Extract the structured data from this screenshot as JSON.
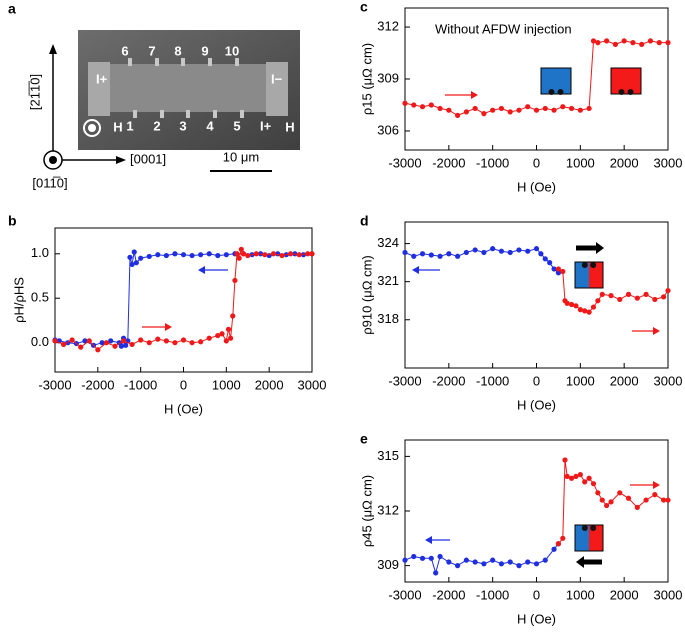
{
  "panel_a": {
    "label": "a",
    "top_electrodes": [
      "6",
      "7",
      "8",
      "9",
      "10"
    ],
    "bottom_electrodes": [
      "1",
      "2",
      "3",
      "4",
      "5"
    ],
    "h_labels": [
      "H",
      "H"
    ],
    "current_labels": [
      "I+",
      "I−",
      "I+"
    ],
    "axis_vertical": "[21̅1̅0]",
    "axis_horizontal": "[0001]",
    "axis_out": "[011̅0]",
    "scale_bar": "10 μm"
  },
  "chart_data": [
    {
      "type": "line",
      "label": "b",
      "xlabel": "H (Oe)",
      "ylabel": "ρH/ρHS",
      "xlim": [
        -3000,
        3000
      ],
      "ylim": [
        -0.33,
        1.29
      ],
      "xticks": [
        -3000,
        -2000,
        -1000,
        0,
        1000,
        2000,
        3000
      ],
      "yticks": [
        {
          "value": 0,
          "label": "0.0"
        },
        {
          "value": 0.5,
          "label": "0.5"
        },
        {
          "value": 1,
          "label": "1.0"
        }
      ],
      "series": [
        {
          "color": "#1f2ee0",
          "x": [
            3000,
            2800,
            2600,
            2400,
            2200,
            2000,
            1800,
            1600,
            1400,
            1200,
            1000,
            800,
            600,
            400,
            200,
            0,
            -200,
            -400,
            -600,
            -800,
            -1000,
            -1100,
            -1150,
            -1200,
            -1250,
            -1300,
            -1350,
            -1400,
            -1450,
            -1500,
            -1700,
            -1900,
            -2100,
            -2300,
            -2500,
            -2700,
            -2900,
            -3000
          ],
          "values": [
            1.0,
            0.99,
            1.0,
            0.99,
            1.0,
            0.98,
            1.0,
            0.99,
            1.0,
            1.0,
            0.99,
            0.98,
            1.0,
            0.99,
            0.98,
            0.99,
            1.0,
            0.98,
            0.99,
            0.97,
            0.95,
            0.9,
            1.02,
            0.88,
            0.96,
            0.02,
            -0.03,
            0.05,
            -0.04,
            0.0,
            0.02,
            0.0,
            -0.03,
            0.02,
            -0.01,
            0.0,
            0.02,
            0.03
          ]
        },
        {
          "color": "#f01818",
          "x": [
            -3000,
            -2800,
            -2600,
            -2400,
            -2200,
            -2000,
            -1800,
            -1600,
            -1400,
            -1200,
            -1000,
            -800,
            -600,
            -400,
            -200,
            0,
            200,
            400,
            600,
            800,
            900,
            1000,
            1050,
            1100,
            1150,
            1200,
            1250,
            1300,
            1350,
            1400,
            1500,
            1700,
            1900,
            2100,
            2300,
            2500,
            2700,
            2900,
            3000
          ],
          "values": [
            0.02,
            -0.02,
            0.03,
            -0.05,
            0.02,
            -0.08,
            0.0,
            -0.04,
            0.02,
            -0.02,
            0.03,
            0.0,
            0.04,
            0.02,
            0.0,
            0.03,
            0.0,
            0.01,
            0.05,
            0.08,
            0.1,
            0.02,
            0.15,
            0.05,
            0.3,
            0.7,
            1.0,
            0.95,
            1.05,
            1.0,
            0.98,
            1.0,
            0.99,
            1.0,
            0.98,
            1.0,
            0.99,
            1.0,
            1.0
          ]
        }
      ]
    },
    {
      "type": "line",
      "label": "c",
      "xlabel": "H (Oe)",
      "ylabel": "ρ15 (μΩ cm)",
      "annotation": "Without AFDW injection",
      "xlim": [
        -3000,
        3000
      ],
      "ylim": [
        304.9,
        313.1
      ],
      "xticks": [
        -3000,
        -2000,
        -1000,
        0,
        1000,
        2000,
        3000
      ],
      "yticks": [
        306,
        309,
        312
      ],
      "series": [
        {
          "color": "#f01818",
          "x": [
            -3000,
            -2800,
            -2600,
            -2400,
            -2200,
            -2000,
            -1800,
            -1600,
            -1400,
            -1200,
            -1000,
            -800,
            -600,
            -400,
            -200,
            0,
            200,
            400,
            600,
            800,
            1000,
            1200,
            1300,
            1400,
            1600,
            1800,
            2000,
            2200,
            2400,
            2600,
            2800,
            3000
          ],
          "values": [
            307.6,
            307.5,
            307.4,
            307.5,
            307.3,
            307.2,
            306.9,
            307.1,
            307.3,
            307.0,
            307.2,
            307.3,
            307.1,
            307.2,
            307.4,
            307.2,
            307.3,
            307.2,
            307.4,
            307.3,
            307.2,
            307.3,
            311.2,
            311.1,
            311.2,
            311.0,
            311.2,
            311.1,
            311.0,
            311.2,
            311.1,
            311.1
          ]
        }
      ]
    },
    {
      "type": "line",
      "label": "d",
      "xlabel": "H (Oe)",
      "ylabel": "ρ910 (μΩ cm)",
      "xlim": [
        -3000,
        3000
      ],
      "ylim": [
        314.2,
        325.7
      ],
      "xticks": [
        -3000,
        -2000,
        -1000,
        0,
        1000,
        2000,
        3000
      ],
      "yticks": [
        318,
        321,
        324
      ],
      "series": [
        {
          "color": "#1f2ee0",
          "x": [
            -3000,
            -2800,
            -2600,
            -2400,
            -2200,
            -2000,
            -1800,
            -1600,
            -1400,
            -1200,
            -1000,
            -800,
            -600,
            -400,
            -200,
            0,
            100,
            200,
            300,
            400,
            500
          ],
          "values": [
            323.3,
            323.0,
            323.2,
            323.1,
            323.0,
            323.2,
            323.0,
            323.3,
            323.5,
            323.3,
            323.6,
            323.4,
            323.3,
            323.5,
            323.4,
            323.6,
            323.2,
            322.8,
            322.5,
            322.0,
            321.7
          ]
        },
        {
          "color": "#f01818",
          "x": [
            500,
            600,
            650,
            700,
            800,
            900,
            1000,
            1100,
            1200,
            1300,
            1400,
            1500,
            1700,
            1900,
            2100,
            2300,
            2500,
            2700,
            2900,
            3000
          ],
          "values": [
            322.0,
            321.8,
            319.5,
            319.3,
            319.2,
            319.1,
            318.8,
            318.7,
            318.6,
            319.0,
            319.5,
            320.0,
            319.9,
            319.6,
            320.0,
            319.7,
            320.0,
            319.6,
            319.8,
            320.3
          ]
        }
      ]
    },
    {
      "type": "line",
      "label": "e",
      "xlabel": "H (Oe)",
      "ylabel": "ρ45 (μΩ cm)",
      "xlim": [
        -3000,
        3000
      ],
      "ylim": [
        308.1,
        315.9
      ],
      "xticks": [
        -3000,
        -2000,
        -1000,
        0,
        1000,
        2000,
        3000
      ],
      "yticks": [
        309,
        312,
        315
      ],
      "series": [
        {
          "color": "#1f2ee0",
          "x": [
            -3000,
            -2800,
            -2600,
            -2400,
            -2300,
            -2200,
            -2000,
            -1800,
            -1600,
            -1400,
            -1200,
            -1000,
            -800,
            -600,
            -400,
            -200,
            0,
            200,
            400,
            500
          ],
          "values": [
            309.3,
            309.5,
            309.4,
            309.4,
            308.6,
            309.5,
            309.2,
            309.0,
            309.3,
            309.2,
            309.1,
            309.3,
            309.1,
            309.2,
            309.0,
            309.2,
            309.1,
            309.3,
            309.9,
            310.2
          ]
        },
        {
          "color": "#f01818",
          "x": [
            500,
            600,
            650,
            700,
            800,
            900,
            1000,
            1100,
            1200,
            1300,
            1400,
            1500,
            1600,
            1700,
            1900,
            2100,
            2300,
            2500,
            2700,
            2900,
            3000
          ],
          "values": [
            310.2,
            310.5,
            314.8,
            313.9,
            313.8,
            313.9,
            314.0,
            313.6,
            313.8,
            313.5,
            313.0,
            312.6,
            312.3,
            312.5,
            313.0,
            312.7,
            312.2,
            312.6,
            312.9,
            312.6,
            312.6
          ]
        }
      ]
    }
  ]
}
